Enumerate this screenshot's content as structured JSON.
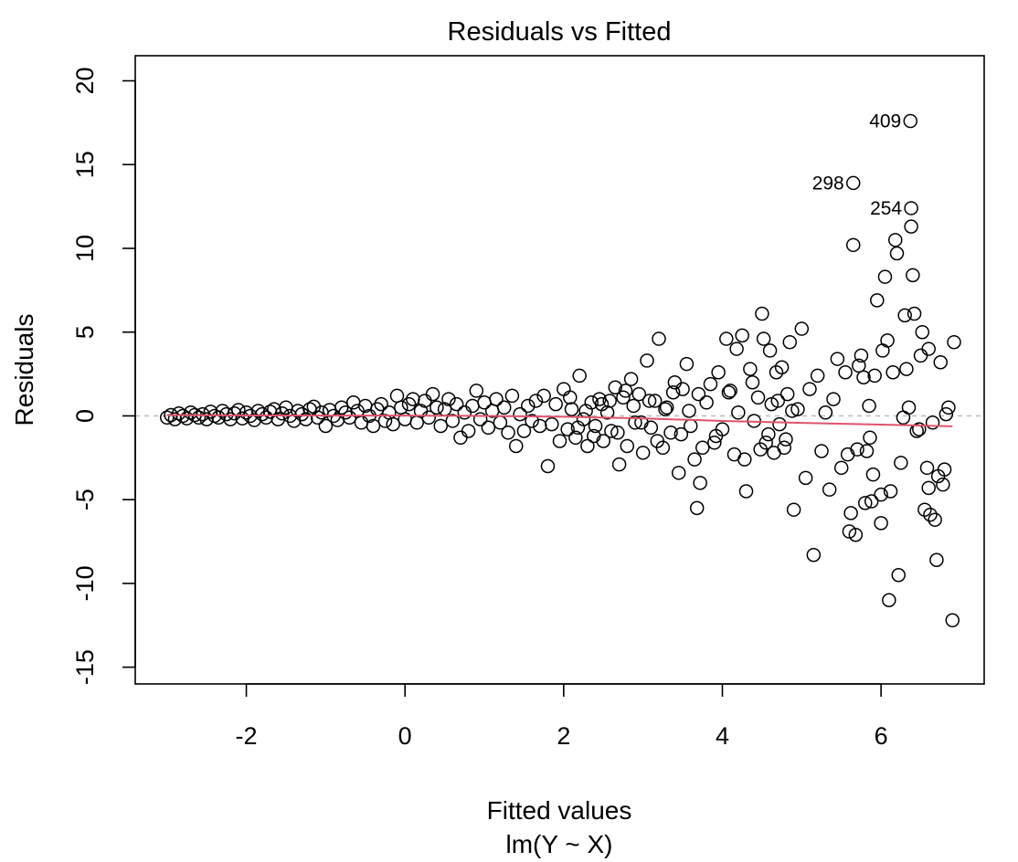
{
  "chart_data": {
    "type": "scatter",
    "title": "Residuals vs Fitted",
    "xlabel": "Fitted values",
    "subtitle": "lm(Y ~ X)",
    "ylabel": "Residuals",
    "xlim": [
      -3.4,
      7.3
    ],
    "ylim": [
      -16,
      21.5
    ],
    "x_ticks": [
      -2,
      0,
      2,
      4,
      6
    ],
    "y_ticks": [
      -15,
      -10,
      -5,
      0,
      5,
      10,
      15,
      20
    ],
    "grid": false,
    "marker": "open-circle",
    "reference_line": {
      "y": 0,
      "style": "dashed",
      "color": "#bebebe"
    },
    "smooth_line": {
      "color": "#df536b",
      "x": [
        -3.0,
        -2.0,
        -1.0,
        0.0,
        1.0,
        2.0,
        3.0,
        4.0,
        5.0,
        6.0,
        6.9
      ],
      "y": [
        0.05,
        0.03,
        0.02,
        0.02,
        0.0,
        -0.05,
        -0.15,
        -0.3,
        -0.42,
        -0.52,
        -0.62
      ]
    },
    "labeled_points": [
      {
        "label": "409",
        "x": 6.37,
        "y": 17.6
      },
      {
        "label": "298",
        "x": 5.65,
        "y": 13.9
      },
      {
        "label": "254",
        "x": 6.38,
        "y": 12.4
      }
    ],
    "points": [
      [
        -3.0,
        -0.1
      ],
      [
        -2.95,
        0.05
      ],
      [
        -2.9,
        -0.2
      ],
      [
        -2.85,
        0.15
      ],
      [
        -2.8,
        0.0
      ],
      [
        -2.75,
        -0.15
      ],
      [
        -2.7,
        0.2
      ],
      [
        -2.65,
        0.05
      ],
      [
        -2.6,
        -0.1
      ],
      [
        -2.55,
        0.1
      ],
      [
        -2.5,
        -0.2
      ],
      [
        -2.45,
        0.25
      ],
      [
        -2.4,
        0.0
      ],
      [
        -2.35,
        -0.1
      ],
      [
        -2.3,
        0.3
      ],
      [
        -2.25,
        0.1
      ],
      [
        -2.2,
        -0.2
      ],
      [
        -2.15,
        0.15
      ],
      [
        -2.1,
        0.35
      ],
      [
        -2.05,
        -0.15
      ],
      [
        -2.0,
        0.2
      ],
      [
        -1.95,
        0.0
      ],
      [
        -1.9,
        -0.25
      ],
      [
        -1.85,
        0.3
      ],
      [
        -1.8,
        0.1
      ],
      [
        -1.75,
        -0.1
      ],
      [
        -1.7,
        0.25
      ],
      [
        -1.65,
        0.4
      ],
      [
        -1.6,
        -0.2
      ],
      [
        -1.55,
        0.15
      ],
      [
        -1.5,
        0.5
      ],
      [
        -1.45,
        0.0
      ],
      [
        -1.4,
        -0.3
      ],
      [
        -1.35,
        0.3
      ],
      [
        -1.3,
        0.1
      ],
      [
        -1.25,
        -0.2
      ],
      [
        -1.2,
        0.4
      ],
      [
        -1.15,
        0.55
      ],
      [
        -1.1,
        -0.1
      ],
      [
        -1.05,
        0.2
      ],
      [
        -1.0,
        -0.6
      ],
      [
        -0.95,
        0.35
      ],
      [
        -0.9,
        0.0
      ],
      [
        -0.85,
        -0.25
      ],
      [
        -0.8,
        0.5
      ],
      [
        -0.75,
        0.2
      ],
      [
        -0.7,
        -0.1
      ],
      [
        -0.65,
        0.8
      ],
      [
        -0.6,
        0.3
      ],
      [
        -0.55,
        -0.4
      ],
      [
        -0.5,
        0.6
      ],
      [
        -0.45,
        0.0
      ],
      [
        -0.4,
        -0.6
      ],
      [
        -0.35,
        0.4
      ],
      [
        -0.3,
        0.7
      ],
      [
        -0.25,
        -0.3
      ],
      [
        -0.2,
        0.2
      ],
      [
        -0.15,
        -0.5
      ],
      [
        -0.1,
        1.2
      ],
      [
        -0.05,
        0.5
      ],
      [
        0.0,
        -0.2
      ],
      [
        0.05,
        0.7
      ],
      [
        0.1,
        1.0
      ],
      [
        0.15,
        -0.4
      ],
      [
        0.2,
        0.3
      ],
      [
        0.25,
        0.9
      ],
      [
        0.3,
        -0.1
      ],
      [
        0.35,
        1.3
      ],
      [
        0.4,
        0.5
      ],
      [
        0.45,
        -0.6
      ],
      [
        0.5,
        0.4
      ],
      [
        0.55,
        1.0
      ],
      [
        0.6,
        -0.3
      ],
      [
        0.65,
        0.7
      ],
      [
        0.7,
        -1.3
      ],
      [
        0.75,
        0.2
      ],
      [
        0.8,
        -0.9
      ],
      [
        0.85,
        0.6
      ],
      [
        0.9,
        1.5
      ],
      [
        0.95,
        -0.2
      ],
      [
        1.0,
        0.8
      ],
      [
        1.05,
        -0.7
      ],
      [
        1.1,
        0.3
      ],
      [
        1.15,
        1.0
      ],
      [
        1.2,
        -0.4
      ],
      [
        1.25,
        0.5
      ],
      [
        1.3,
        -1.0
      ],
      [
        1.35,
        1.2
      ],
      [
        1.4,
        -1.8
      ],
      [
        1.45,
        0.1
      ],
      [
        1.5,
        -0.9
      ],
      [
        1.55,
        0.6
      ],
      [
        1.6,
        -0.3
      ],
      [
        1.65,
        0.9
      ],
      [
        1.7,
        -0.6
      ],
      [
        1.75,
        1.2
      ],
      [
        1.8,
        -3.0
      ],
      [
        1.85,
        -0.5
      ],
      [
        1.9,
        0.7
      ],
      [
        1.95,
        -1.5
      ],
      [
        2.0,
        1.6
      ],
      [
        2.05,
        -0.8
      ],
      [
        2.1,
        0.4
      ],
      [
        2.15,
        -1.3
      ],
      [
        2.2,
        2.4
      ],
      [
        2.25,
        -0.2
      ],
      [
        2.3,
        -1.8
      ],
      [
        2.35,
        0.8
      ],
      [
        2.4,
        -0.6
      ],
      [
        2.45,
        1.0
      ],
      [
        2.5,
        -1.5
      ],
      [
        2.55,
        0.2
      ],
      [
        2.6,
        -0.9
      ],
      [
        2.65,
        1.7
      ],
      [
        2.7,
        -2.9
      ],
      [
        2.75,
        1.1
      ],
      [
        2.8,
        -1.8
      ],
      [
        2.85,
        2.2
      ],
      [
        2.9,
        -0.4
      ],
      [
        2.95,
        1.3
      ],
      [
        3.0,
        -2.2
      ],
      [
        3.05,
        3.3
      ],
      [
        3.1,
        -0.7
      ],
      [
        3.15,
        0.9
      ],
      [
        3.2,
        4.6
      ],
      [
        3.25,
        -1.9
      ],
      [
        3.3,
        0.5
      ],
      [
        3.35,
        -1.0
      ],
      [
        3.4,
        2.0
      ],
      [
        3.45,
        -3.4
      ],
      [
        3.5,
        1.6
      ],
      [
        3.55,
        3.1
      ],
      [
        3.6,
        -0.6
      ],
      [
        3.65,
        -2.6
      ],
      [
        3.7,
        1.3
      ],
      [
        3.75,
        -1.9
      ],
      [
        3.8,
        0.8
      ],
      [
        3.85,
        1.9
      ],
      [
        3.9,
        -1.6
      ],
      [
        3.95,
        2.6
      ],
      [
        4.0,
        -0.8
      ],
      [
        4.05,
        4.6
      ],
      [
        4.1,
        1.5
      ],
      [
        4.15,
        -2.3
      ],
      [
        4.2,
        0.2
      ],
      [
        4.25,
        4.8
      ],
      [
        4.3,
        -4.5
      ],
      [
        4.35,
        2.8
      ],
      [
        4.4,
        -0.3
      ],
      [
        4.45,
        1.1
      ],
      [
        4.5,
        6.1
      ],
      [
        4.55,
        -1.6
      ],
      [
        4.6,
        3.9
      ],
      [
        4.65,
        -2.2
      ],
      [
        4.7,
        0.9
      ],
      [
        4.75,
        2.9
      ],
      [
        4.8,
        -1.4
      ],
      [
        4.85,
        4.4
      ],
      [
        4.9,
        -5.6
      ],
      [
        4.95,
        0.4
      ],
      [
        5.0,
        5.2
      ],
      [
        5.05,
        -3.7
      ],
      [
        5.1,
        1.6
      ],
      [
        5.15,
        -8.3
      ],
      [
        5.2,
        2.4
      ],
      [
        5.25,
        -2.1
      ],
      [
        5.3,
        0.2
      ],
      [
        5.35,
        -4.4
      ],
      [
        5.4,
        1.0
      ],
      [
        5.45,
        3.4
      ],
      [
        5.5,
        -3.1
      ],
      [
        5.55,
        2.6
      ],
      [
        5.6,
        -6.9
      ],
      [
        5.65,
        10.2
      ],
      [
        5.7,
        -2.0
      ],
      [
        5.75,
        3.6
      ],
      [
        5.8,
        -5.2
      ],
      [
        5.85,
        0.6
      ],
      [
        5.9,
        -3.5
      ],
      [
        5.95,
        6.9
      ],
      [
        6.0,
        -4.7
      ],
      [
        6.05,
        8.3
      ],
      [
        6.1,
        -11.0
      ],
      [
        6.15,
        2.6
      ],
      [
        6.2,
        9.7
      ],
      [
        6.25,
        -2.8
      ],
      [
        6.3,
        6.0
      ],
      [
        6.35,
        0.5
      ],
      [
        6.4,
        8.4
      ],
      [
        6.45,
        -0.9
      ],
      [
        6.5,
        3.6
      ],
      [
        6.55,
        -5.6
      ],
      [
        6.6,
        4.0
      ],
      [
        6.65,
        -0.4
      ],
      [
        6.7,
        -8.6
      ],
      [
        6.75,
        3.2
      ],
      [
        6.8,
        -3.2
      ],
      [
        6.85,
        0.5
      ],
      [
        6.9,
        -12.2
      ],
      [
        6.92,
        4.4
      ],
      [
        5.62,
        -5.8
      ],
      [
        5.68,
        -7.1
      ],
      [
        5.72,
        3.0
      ],
      [
        5.78,
        2.3
      ],
      [
        5.86,
        -1.3
      ],
      [
        5.92,
        2.4
      ],
      [
        6.02,
        3.9
      ],
      [
        6.08,
        4.5
      ],
      [
        6.12,
        -4.5
      ],
      [
        6.18,
        10.5
      ],
      [
        6.22,
        -9.5
      ],
      [
        6.28,
        -0.1
      ],
      [
        6.38,
        11.3
      ],
      [
        6.42,
        6.1
      ],
      [
        6.48,
        -0.8
      ],
      [
        6.52,
        5.0
      ],
      [
        6.58,
        -3.1
      ],
      [
        6.62,
        -5.9
      ],
      [
        6.68,
        -6.2
      ],
      [
        6.72,
        -3.6
      ],
      [
        6.78,
        -4.1
      ],
      [
        6.82,
        0.1
      ],
      [
        5.58,
        -2.3
      ],
      [
        5.82,
        -2.1
      ],
      [
        5.88,
        -5.1
      ],
      [
        6.0,
        -6.4
      ],
      [
        6.32,
        2.8
      ],
      [
        6.6,
        -4.3
      ],
      [
        4.48,
        -2.0
      ],
      [
        4.52,
        4.6
      ],
      [
        4.58,
        -1.1
      ],
      [
        4.62,
        0.7
      ],
      [
        4.68,
        2.6
      ],
      [
        4.72,
        -0.5
      ],
      [
        4.78,
        -1.9
      ],
      [
        4.82,
        1.3
      ],
      [
        4.88,
        0.3
      ],
      [
        3.68,
        -5.5
      ],
      [
        3.72,
        -4.0
      ],
      [
        3.92,
        -1.2
      ],
      [
        4.08,
        1.4
      ],
      [
        4.18,
        4.0
      ],
      [
        4.28,
        -2.6
      ],
      [
        4.38,
        2.0
      ],
      [
        3.58,
        0.3
      ],
      [
        3.48,
        -1.1
      ],
      [
        3.38,
        1.4
      ],
      [
        3.28,
        0.4
      ],
      [
        3.18,
        -1.5
      ],
      [
        3.08,
        0.9
      ],
      [
        2.98,
        -0.4
      ],
      [
        2.88,
        0.6
      ],
      [
        2.78,
        1.5
      ],
      [
        2.68,
        -1.0
      ],
      [
        2.58,
        0.9
      ],
      [
        2.48,
        0.7
      ],
      [
        2.38,
        -1.2
      ],
      [
        2.28,
        0.3
      ],
      [
        2.18,
        -0.7
      ],
      [
        2.08,
        1.1
      ]
    ]
  }
}
